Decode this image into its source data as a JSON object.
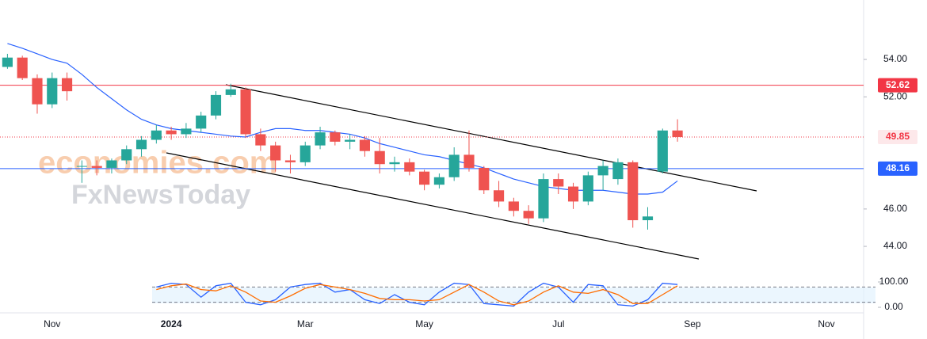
{
  "chart_data": {
    "type": "candlestick",
    "watermark": [
      "economies.com",
      "FxNewsToday"
    ],
    "categories": [
      null,
      null,
      null,
      "Nov",
      null,
      null,
      null,
      null,
      null,
      null,
      null,
      "2024",
      null,
      null,
      null,
      null,
      null,
      null,
      null,
      null,
      "Mar",
      null,
      null,
      null,
      null,
      null,
      null,
      null,
      "May",
      null,
      null,
      null,
      null,
      null,
      null,
      null,
      null,
      "Jul",
      null,
      null,
      null,
      null,
      null,
      null,
      null,
      null,
      "Sep",
      null,
      null,
      null,
      null,
      null,
      null,
      null,
      null,
      "Nov",
      null,
      null
    ],
    "open": [
      53.6,
      54.1,
      53.0,
      51.6,
      53.0,
      48.3,
      48.3,
      48.2,
      48.6,
      49.2,
      49.7,
      50.2,
      50.0,
      50.3,
      51.0,
      52.1,
      52.4,
      50.0,
      49.4,
      48.6,
      48.5,
      49.4,
      50.1,
      49.6,
      49.7,
      49.1,
      48.4,
      48.5,
      48.0,
      47.3,
      47.7,
      48.9,
      48.2,
      47.0,
      46.4,
      45.9,
      45.5,
      47.6,
      47.2,
      46.4,
      47.8,
      47.6,
      48.5,
      45.4,
      48.0,
      50.2,
      null,
      null,
      null,
      null,
      null,
      null,
      null,
      null,
      null,
      null,
      null,
      null
    ],
    "high": [
      54.3,
      54.2,
      53.2,
      53.3,
      53.3,
      48.6,
      48.6,
      48.7,
      49.4,
      49.9,
      50.5,
      50.4,
      50.6,
      51.2,
      52.3,
      52.7,
      52.5,
      50.3,
      49.6,
      48.9,
      49.6,
      50.4,
      50.2,
      50.0,
      49.9,
      49.8,
      48.8,
      48.7,
      48.1,
      47.9,
      49.3,
      50.2,
      48.3,
      47.5,
      46.6,
      46.2,
      47.9,
      47.9,
      47.4,
      48.0,
      48.6,
      48.7,
      48.6,
      46.1,
      50.3,
      50.8,
      null,
      null,
      null,
      null,
      null,
      null,
      null,
      null,
      null,
      null,
      null,
      null
    ],
    "low": [
      53.5,
      52.9,
      51.1,
      51.4,
      51.8,
      47.4,
      47.8,
      47.9,
      48.4,
      48.8,
      49.5,
      49.7,
      49.8,
      50.1,
      50.8,
      52.0,
      49.8,
      49.1,
      48.0,
      47.9,
      48.3,
      49.2,
      49.4,
      49.2,
      48.8,
      47.9,
      48.0,
      47.8,
      47.0,
      47.1,
      47.5,
      48.0,
      46.8,
      46.1,
      45.6,
      45.2,
      45.3,
      46.8,
      46.0,
      46.2,
      47.0,
      47.3,
      45.0,
      44.9,
      47.9,
      49.6,
      null,
      null,
      null,
      null,
      null,
      null,
      null,
      null,
      null,
      null,
      null,
      null
    ],
    "close": [
      54.1,
      53.0,
      51.6,
      53.0,
      52.3,
      48.3,
      48.2,
      48.6,
      49.2,
      49.7,
      50.2,
      50.0,
      50.3,
      51.0,
      52.1,
      52.4,
      50.0,
      49.4,
      48.6,
      48.5,
      49.4,
      50.1,
      49.6,
      49.7,
      49.1,
      48.4,
      48.5,
      48.0,
      47.3,
      47.7,
      48.9,
      48.2,
      47.0,
      46.4,
      45.9,
      45.5,
      47.6,
      47.2,
      46.4,
      47.8,
      48.3,
      48.5,
      45.4,
      45.6,
      50.2,
      49.85,
      null,
      null,
      null,
      null,
      null,
      null,
      null,
      null,
      null,
      null,
      null,
      null
    ],
    "up_color": "#26a69a",
    "down_color": "#ef5350",
    "moving_average": {
      "color": "#2962ff",
      "values": [
        54.85,
        54.6,
        54.3,
        54.0,
        53.8,
        53.2,
        52.5,
        51.9,
        51.3,
        50.8,
        50.5,
        50.3,
        50.2,
        50.1,
        50.0,
        49.9,
        49.85,
        50.1,
        50.3,
        50.3,
        50.2,
        50.2,
        50.1,
        50.0,
        49.8,
        49.5,
        49.3,
        49.1,
        48.9,
        48.8,
        48.6,
        48.4,
        48.2,
        47.9,
        47.6,
        47.4,
        47.2,
        47.1,
        47.0,
        47.0,
        47.0,
        46.9,
        46.8,
        46.8,
        46.9,
        47.5,
        null,
        null,
        null,
        null,
        null,
        null,
        null,
        null,
        null,
        null,
        null,
        null
      ]
    },
    "levels": [
      {
        "value": 52.62,
        "label": "52.62",
        "color": "#f23645",
        "style": "solid"
      },
      {
        "value": 49.85,
        "label": "49.85",
        "color": "#f23645",
        "style": "dotted"
      },
      {
        "value": 48.16,
        "label": "48.16",
        "color": "#2962ff",
        "style": "solid"
      }
    ],
    "ylim": [
      42.35,
      57.18
    ],
    "yticks": [
      {
        "value": 54,
        "label": "54.00"
      },
      {
        "value": 52,
        "label": "52.00"
      },
      {
        "value": 46,
        "label": "46.00"
      },
      {
        "value": 44,
        "label": "44.00"
      }
    ],
    "oscillator": {
      "ylim": [
        0,
        100
      ],
      "yticks": [
        {
          "value": 100,
          "label": "100.00"
        },
        {
          "value": 0,
          "label": "0.00"
        }
      ],
      "bands": [
        80,
        20
      ],
      "series": [
        {
          "color": "#2962ff",
          "values": [
            null,
            null,
            null,
            null,
            null,
            null,
            null,
            null,
            null,
            null,
            80,
            95,
            90,
            40,
            85,
            95,
            20,
            10,
            30,
            80,
            90,
            95,
            60,
            70,
            30,
            15,
            50,
            20,
            10,
            60,
            95,
            90,
            15,
            10,
            5,
            60,
            95,
            80,
            20,
            90,
            85,
            10,
            5,
            30,
            95,
            90,
            null,
            null,
            null,
            null,
            null,
            null,
            null,
            null,
            null,
            null,
            null,
            null
          ]
        },
        {
          "color": "#ff6d00",
          "values": [
            null,
            null,
            null,
            null,
            null,
            null,
            null,
            null,
            null,
            null,
            70,
            85,
            92,
            70,
            65,
            85,
            60,
            25,
            20,
            45,
            75,
            90,
            80,
            70,
            55,
            35,
            30,
            30,
            25,
            30,
            60,
            90,
            60,
            25,
            10,
            25,
            60,
            85,
            60,
            55,
            70,
            50,
            15,
            15,
            50,
            85,
            null,
            null,
            null,
            null,
            null,
            null,
            null,
            null,
            null,
            null,
            null,
            null
          ]
        }
      ]
    }
  }
}
